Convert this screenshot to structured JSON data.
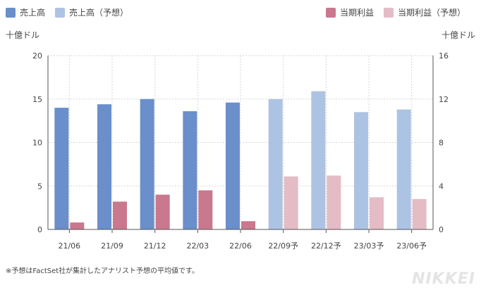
{
  "legend": {
    "revenue": "売上高",
    "revenue_forecast": "売上高（予想）",
    "profit": "当期利益",
    "profit_forecast": "当期利益（予想）"
  },
  "colors": {
    "revenue": "#6a8fca",
    "revenue_forecast": "#adc3e3",
    "profit": "#c9788e",
    "profit_forecast": "#e3bcc6"
  },
  "footnote": "※予想はFactSet社が集計したアナリスト予想の平均値です。",
  "brand": "NIKKEI",
  "chart_data": {
    "type": "bar",
    "categories": [
      "21/06",
      "21/09",
      "21/12",
      "22/03",
      "22/06",
      "22/09予",
      "22/12予",
      "23/03予",
      "23/06予"
    ],
    "forecast": [
      false,
      false,
      false,
      false,
      false,
      true,
      true,
      true,
      true
    ],
    "series": [
      {
        "name": "売上高",
        "axis": "left",
        "values": [
          14.0,
          14.4,
          15.0,
          13.6,
          14.6,
          15.0,
          15.9,
          13.5,
          13.8
        ]
      },
      {
        "name": "当期利益",
        "axis": "left",
        "values": [
          0.8,
          3.2,
          4.0,
          4.5,
          0.95,
          6.1,
          6.2,
          3.7,
          3.5
        ]
      }
    ],
    "y_left": {
      "label": "十億ドル",
      "min": 0,
      "max": 20,
      "ticks": [
        0,
        5,
        10,
        15,
        20
      ]
    },
    "y_right": {
      "label": "十億ドル",
      "min": 0,
      "max": 16,
      "ticks": [
        0,
        4,
        8,
        12,
        16
      ]
    },
    "grid": true,
    "legend": "top"
  }
}
